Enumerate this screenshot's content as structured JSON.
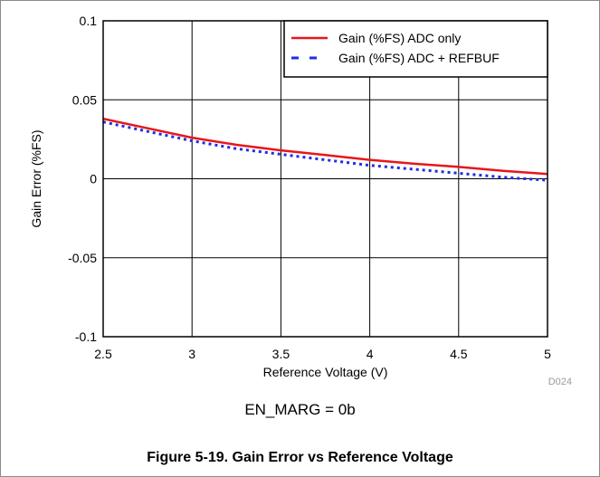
{
  "chart_data": {
    "type": "line",
    "title": "",
    "xlabel": "Reference Voltage (V)",
    "ylabel": "Gain Error (%FS)",
    "xlim": [
      2.5,
      5
    ],
    "ylim": [
      -0.1,
      0.1
    ],
    "x_ticks": [
      2.5,
      3,
      3.5,
      4,
      4.5,
      5
    ],
    "x_tick_labels": [
      "2.5",
      "3",
      "3.5",
      "4",
      "4.5",
      "5"
    ],
    "y_ticks": [
      0.1,
      0.05,
      0,
      -0.05,
      -0.1
    ],
    "y_tick_labels": [
      "0.1",
      "0.05",
      "0",
      "-0.05",
      "-0.1"
    ],
    "grid": true,
    "legend_position": "top-right",
    "series": [
      {
        "name": "Gain (%FS) ADC only",
        "color": "#e8161b",
        "style": "solid",
        "x": [
          2.5,
          2.75,
          3.0,
          3.25,
          3.5,
          3.75,
          4.0,
          4.25,
          4.5,
          4.75,
          5.0
        ],
        "y": [
          0.038,
          0.032,
          0.026,
          0.0215,
          0.018,
          0.015,
          0.012,
          0.0095,
          0.0075,
          0.005,
          0.003
        ]
      },
      {
        "name": "Gain (%FS) ADC + REFBUF",
        "color": "#1f2fe0",
        "style": "dotted",
        "x": [
          2.5,
          2.75,
          3.0,
          3.25,
          3.5,
          3.75,
          4.0,
          4.25,
          4.5,
          4.75,
          5.0
        ],
        "y": [
          0.036,
          0.03,
          0.024,
          0.019,
          0.0155,
          0.012,
          0.0085,
          0.006,
          0.0035,
          0.001,
          -0.001
        ]
      }
    ]
  },
  "figure_code": "D024",
  "annotation": "EN_MARG = 0b",
  "caption": "Figure 5-19. Gain Error vs Reference Voltage"
}
